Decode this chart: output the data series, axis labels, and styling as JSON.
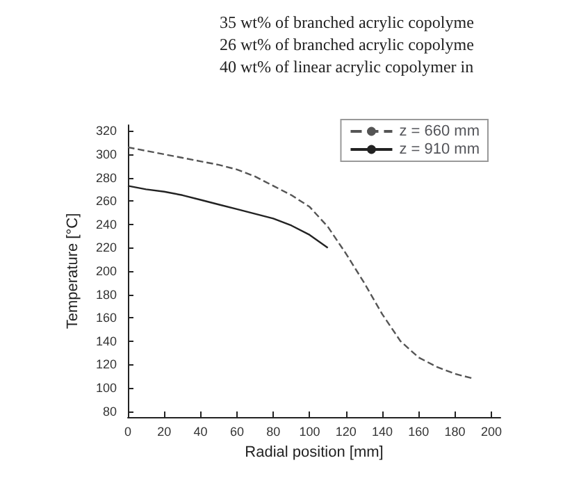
{
  "chart_data": {
    "type": "line",
    "xlabel": "Radial position [mm]",
    "ylabel": "Temperature [°C]",
    "annotations": [
      "35 wt% of branched acrylic copolyme",
      "26 wt% of branched acrylic copolyme",
      "40 wt% of linear acrylic copolymer in"
    ],
    "xlim": [
      0,
      205
    ],
    "xticks": [
      0,
      20,
      40,
      60,
      80,
      100,
      120,
      140,
      160,
      180,
      200
    ],
    "ylim": [
      75,
      325
    ],
    "yticks": [
      80,
      100,
      120,
      140,
      160,
      180,
      200,
      220,
      240,
      260,
      280,
      300,
      320
    ],
    "grid": false,
    "legend": "top right",
    "marker": "none",
    "series": [
      {
        "name": "z = 660 mm",
        "color": "#555555",
        "line_style": "dashed",
        "x": [
          0,
          10,
          20,
          30,
          40,
          50,
          60,
          70,
          80,
          90,
          100,
          110,
          120,
          130,
          140,
          150,
          160,
          170,
          180,
          190
        ],
        "values": [
          306,
          303,
          300,
          297,
          294,
          291,
          287,
          281,
          273,
          265,
          255,
          238,
          215,
          190,
          163,
          140,
          126,
          118,
          112,
          108
        ]
      },
      {
        "name": "z = 910 mm",
        "color": "#222222",
        "line_style": "solid",
        "x": [
          0,
          10,
          20,
          30,
          40,
          50,
          60,
          70,
          80,
          90,
          100,
          110
        ],
        "values": [
          273,
          270,
          268,
          265,
          261,
          257,
          253,
          249,
          245,
          239,
          231,
          220
        ]
      }
    ]
  }
}
